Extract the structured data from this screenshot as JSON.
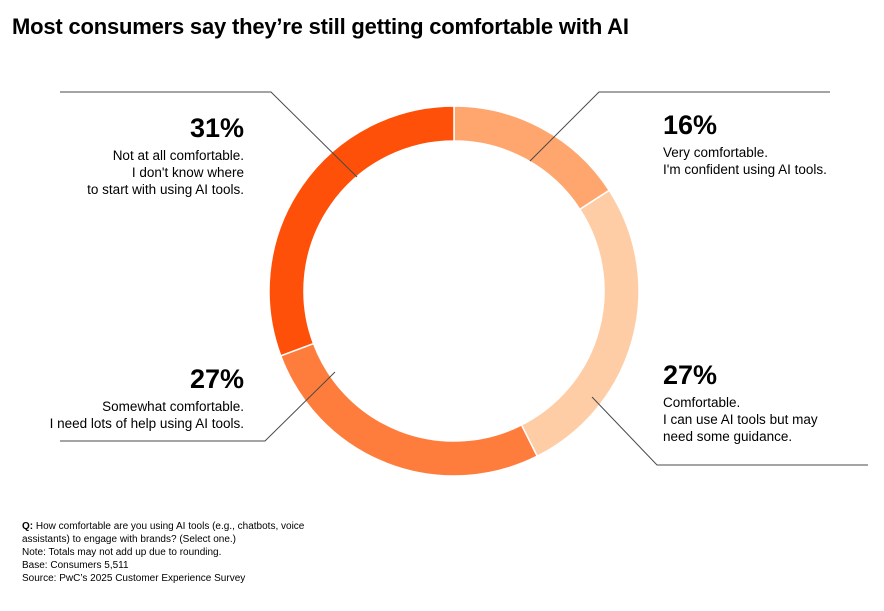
{
  "title": "Most consumers say they’re still getting comfortable with AI",
  "chart_data": {
    "type": "pie",
    "donut": true,
    "slices": [
      {
        "value": 16,
        "label": "16%",
        "line1": "Very comfortable.",
        "line2": "I'm confident using AI tools.",
        "line3": "",
        "color": "#FFA66E"
      },
      {
        "value": 27,
        "label": "27%",
        "line1": "Comfortable.",
        "line2": "I can use AI tools but may",
        "line3": "need some guidance.",
        "color": "#FFCDA5"
      },
      {
        "value": 27,
        "label": "27%",
        "line1": "Somewhat comfortable.",
        "line2": "I need lots of help using AI tools.",
        "line3": "",
        "color": "#FF7D3C"
      },
      {
        "value": 31,
        "label": "31%",
        "line1": "Not at all comfortable.",
        "line2": "I don't know where",
        "line3": "to start with using AI tools.",
        "color": "#FF5009"
      }
    ]
  },
  "notes": {
    "q_key": "Q:",
    "q_line1": "How comfortable are you using AI tools (e.g., chatbots, voice",
    "q_line2": "assistants) to engage with brands? (Select one.)",
    "note": "Note: Totals may not add up due to rounding.",
    "base": "Base: Consumers 5,511",
    "source": "Source: PwC’s 2025 Customer Experience Survey"
  }
}
